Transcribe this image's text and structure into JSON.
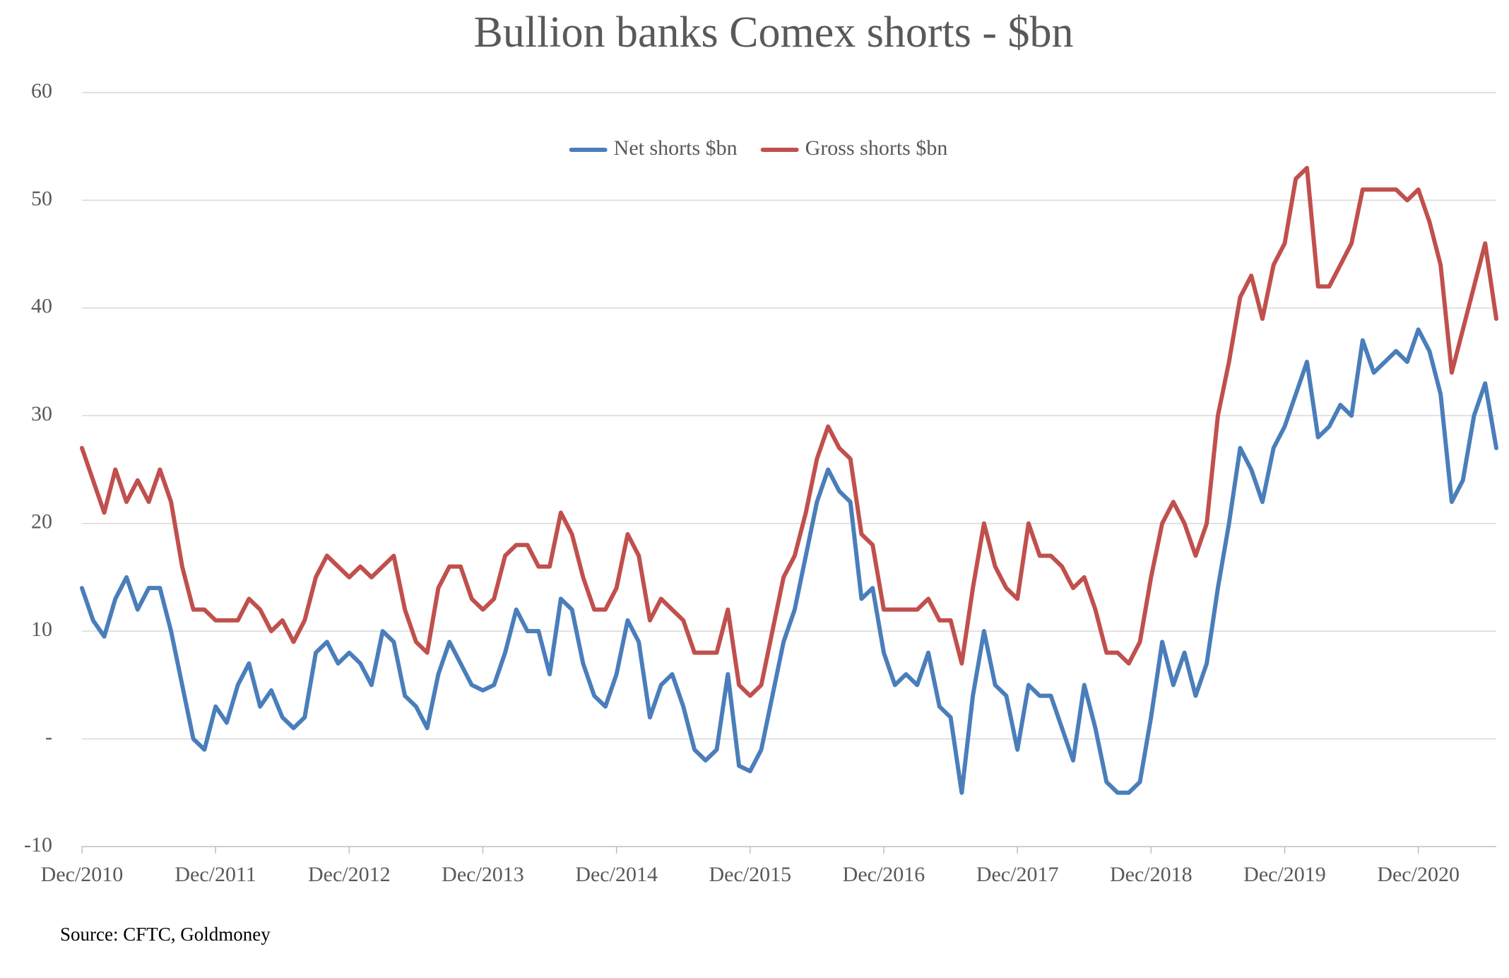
{
  "chart_data": {
    "type": "line",
    "title": "Bullion banks Comex shorts - $bn",
    "source": "Source: CFTC, Goldmoney",
    "x": [
      "Dec/2010",
      "Jan/2011",
      "Feb/2011",
      "Mar/2011",
      "Apr/2011",
      "May/2011",
      "Jun/2011",
      "Jul/2011",
      "Aug/2011",
      "Sep/2011",
      "Oct/2011",
      "Nov/2011",
      "Dec/2011",
      "Jan/2012",
      "Feb/2012",
      "Mar/2012",
      "Apr/2012",
      "May/2012",
      "Jun/2012",
      "Jul/2012",
      "Aug/2012",
      "Sep/2012",
      "Oct/2012",
      "Nov/2012",
      "Dec/2012",
      "Jan/2013",
      "Feb/2013",
      "Mar/2013",
      "Apr/2013",
      "May/2013",
      "Jun/2013",
      "Jul/2013",
      "Aug/2013",
      "Sep/2013",
      "Oct/2013",
      "Nov/2013",
      "Dec/2013",
      "Jan/2014",
      "Feb/2014",
      "Mar/2014",
      "Apr/2014",
      "May/2014",
      "Jun/2014",
      "Jul/2014",
      "Aug/2014",
      "Sep/2014",
      "Oct/2014",
      "Nov/2014",
      "Dec/2014",
      "Jan/2015",
      "Feb/2015",
      "Mar/2015",
      "Apr/2015",
      "May/2015",
      "Jun/2015",
      "Jul/2015",
      "Aug/2015",
      "Sep/2015",
      "Oct/2015",
      "Nov/2015",
      "Dec/2015",
      "Jan/2016",
      "Feb/2016",
      "Mar/2016",
      "Apr/2016",
      "May/2016",
      "Jun/2016",
      "Jul/2016",
      "Aug/2016",
      "Sep/2016",
      "Oct/2016",
      "Nov/2016",
      "Dec/2016",
      "Jan/2017",
      "Feb/2017",
      "Mar/2017",
      "Apr/2017",
      "May/2017",
      "Jun/2017",
      "Jul/2017",
      "Aug/2017",
      "Sep/2017",
      "Oct/2017",
      "Nov/2017",
      "Dec/2017",
      "Jan/2018",
      "Feb/2018",
      "Mar/2018",
      "Apr/2018",
      "May/2018",
      "Jun/2018",
      "Jul/2018",
      "Aug/2018",
      "Sep/2018",
      "Oct/2018",
      "Nov/2018",
      "Dec/2018",
      "Jan/2019",
      "Feb/2019",
      "Mar/2019",
      "Apr/2019",
      "May/2019",
      "Jun/2019",
      "Jul/2019",
      "Aug/2019",
      "Sep/2019",
      "Oct/2019",
      "Nov/2019",
      "Dec/2019",
      "Jan/2020",
      "Feb/2020",
      "Mar/2020",
      "Apr/2020",
      "May/2020",
      "Jun/2020",
      "Jul/2020",
      "Aug/2020",
      "Sep/2020",
      "Oct/2020",
      "Nov/2020",
      "Dec/2020",
      "Jan/2021",
      "Feb/2021",
      "Mar/2021",
      "Apr/2021",
      "May/2021",
      "Jun/2021",
      "Jul/2021"
    ],
    "xticks": [
      "Dec/2010",
      "Dec/2011",
      "Dec/2012",
      "Dec/2013",
      "Dec/2014",
      "Dec/2015",
      "Dec/2016",
      "Dec/2017",
      "Dec/2018",
      "Dec/2019",
      "Dec/2020"
    ],
    "series": [
      {
        "name": "Net shorts $bn",
        "color": "#4a7ebb",
        "values": [
          14,
          11,
          9.5,
          13,
          15,
          12,
          14,
          14,
          10,
          5,
          0,
          -1,
          3,
          1.5,
          5,
          7,
          3,
          4.5,
          2,
          1,
          2,
          8,
          9,
          7,
          8,
          7,
          5,
          10,
          9,
          4,
          3,
          1,
          6,
          9,
          7,
          5,
          4.5,
          5,
          8,
          12,
          10,
          10,
          6,
          13,
          12,
          7,
          4,
          3,
          6,
          11,
          9,
          2,
          5,
          6,
          3,
          -1,
          -2,
          -1,
          6,
          -2.5,
          -3,
          -1,
          4,
          9,
          12,
          17,
          22,
          25,
          23,
          22,
          13,
          14,
          8,
          5,
          6,
          5,
          8,
          3,
          2,
          -5,
          4,
          10,
          5,
          4,
          -1,
          5,
          4,
          4,
          1,
          -2,
          5,
          1,
          -4,
          -5,
          -5,
          -4,
          2,
          9,
          5,
          8,
          4,
          7,
          14,
          20,
          27,
          25,
          22,
          27,
          29,
          32,
          35,
          28,
          29,
          31,
          30,
          37,
          34,
          35,
          36,
          35,
          38,
          36,
          32,
          22,
          24,
          30,
          33,
          27
        ]
      },
      {
        "name": "Gross shorts $bn",
        "color": "#c0504d",
        "values": [
          27,
          24,
          21,
          25,
          22,
          24,
          22,
          25,
          22,
          16,
          12,
          12,
          11,
          11,
          11,
          13,
          12,
          10,
          11,
          9,
          11,
          15,
          17,
          16,
          15,
          16,
          15,
          16,
          17,
          12,
          9,
          8,
          14,
          16,
          16,
          13,
          12,
          13,
          17,
          18,
          18,
          16,
          16,
          21,
          19,
          15,
          12,
          12,
          14,
          19,
          17,
          11,
          13,
          12,
          11,
          8,
          8,
          8,
          12,
          5,
          4,
          5,
          10,
          15,
          17,
          21,
          26,
          29,
          27,
          26,
          19,
          18,
          12,
          12,
          12,
          12,
          13,
          11,
          11,
          7,
          14,
          20,
          16,
          14,
          13,
          20,
          17,
          17,
          16,
          14,
          15,
          12,
          8,
          8,
          7,
          9,
          15,
          20,
          22,
          20,
          17,
          20,
          30,
          35,
          41,
          43,
          39,
          44,
          46,
          52,
          53,
          42,
          42,
          44,
          46,
          51,
          51,
          51,
          51,
          50,
          51,
          48,
          44,
          34,
          38,
          42,
          46,
          39
        ]
      }
    ],
    "ylim": [
      -10,
      60
    ],
    "yticks": [
      -10,
      {
        "value": 0,
        "label": "-"
      },
      10,
      20,
      30,
      40,
      50,
      60
    ],
    "grid": true,
    "legend": "top"
  }
}
